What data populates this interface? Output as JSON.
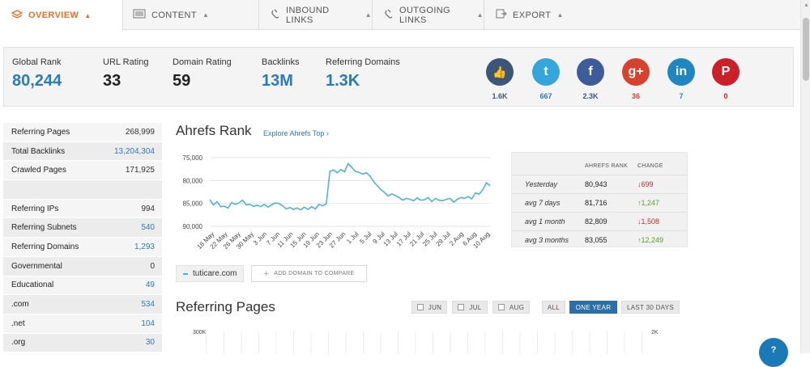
{
  "tabs": [
    {
      "label": "OVERVIEW",
      "icon": "layers-icon"
    },
    {
      "label": "CONTENT",
      "icon": "document-icon"
    },
    {
      "label": "INBOUND LINKS",
      "icon": "link-in-icon"
    },
    {
      "label": "OUTGOING LINKS",
      "icon": "link-out-icon"
    },
    {
      "label": "EXPORT",
      "icon": "export-icon"
    }
  ],
  "metrics": [
    {
      "label": "Global Rank",
      "value": "80,244"
    },
    {
      "label": "URL Rating",
      "value": "33"
    },
    {
      "label": "Domain Rating",
      "value": "59"
    },
    {
      "label": "Backlinks",
      "value": "13M"
    },
    {
      "label": "Referring Domains",
      "value": "1.3K"
    }
  ],
  "social": [
    {
      "network": "like",
      "icon": "thumbs-up-icon",
      "glyph": "👍",
      "count": "1.6K",
      "color": "#3b5676",
      "count_color": "#3b5676"
    },
    {
      "network": "twitter",
      "icon": "twitter-icon",
      "glyph": "t",
      "count": "667",
      "color": "#35a6dc",
      "count_color": "#2b7bb9"
    },
    {
      "network": "facebook",
      "icon": "facebook-icon",
      "glyph": "f",
      "count": "2.3K",
      "color": "#3f5c9a",
      "count_color": "#3b5676"
    },
    {
      "network": "google-plus",
      "icon": "google-plus-icon",
      "glyph": "g+",
      "count": "36",
      "color": "#d9412f",
      "count_color": "#d9412f"
    },
    {
      "network": "linkedin",
      "icon": "linkedin-icon",
      "glyph": "in",
      "count": "7",
      "color": "#1f86c0",
      "count_color": "#1f86c0"
    },
    {
      "network": "pinterest",
      "icon": "pinterest-icon",
      "glyph": "P",
      "count": "0",
      "color": "#cb2027",
      "count_color": "#cb2027"
    }
  ],
  "stats": [
    {
      "label": "Referring Pages",
      "value": "268,999",
      "link": false
    },
    {
      "label": "Total Backlinks",
      "value": "13,204,304",
      "link": true
    },
    {
      "label": "Crawled Pages",
      "value": "171,925",
      "link": false
    },
    {
      "label": "",
      "value": "",
      "link": false
    },
    {
      "label": "Referring IPs",
      "value": "994",
      "link": false
    },
    {
      "label": "Referring Subnets",
      "value": "540",
      "link": true
    },
    {
      "label": "Referring Domains",
      "value": "1,293",
      "link": true
    },
    {
      "label": "Governmental",
      "value": "0",
      "link": false
    },
    {
      "label": "Educational",
      "value": "49",
      "link": true
    },
    {
      "label": ".com",
      "value": "534",
      "link": true
    },
    {
      "label": ".net",
      "value": "104",
      "link": true
    },
    {
      "label": ".org",
      "value": "30",
      "link": true
    }
  ],
  "rank": {
    "title": "Ahrefs Rank",
    "explore": "Explore Ahrefs Top ›",
    "table_headers": [
      "AHREFS RANK",
      "CHANGE"
    ],
    "rows": [
      {
        "label": "Yesterday",
        "rank": "80,943",
        "change": "699",
        "dir": "down"
      },
      {
        "label": "avg 7 days",
        "rank": "81,716",
        "change": "1,247",
        "dir": "up"
      },
      {
        "label": "avg 1 month",
        "rank": "82,809",
        "change": "1,508",
        "dir": "down"
      },
      {
        "label": "avg 3 months",
        "rank": "83,055",
        "change": "12,249",
        "dir": "up"
      }
    ]
  },
  "chart_data": {
    "type": "line",
    "title": "Ahrefs Rank",
    "y_ticks": [
      "75,000",
      "80,000",
      "85,000",
      "90,000"
    ],
    "ylim": [
      75000,
      90000
    ],
    "y_inverted": true,
    "x_ticks": [
      "18 May",
      "22 May",
      "26 May",
      "30 May",
      "3 Jun",
      "7 Jun",
      "11 Jun",
      "15 Jun",
      "19 Jun",
      "23 Jun",
      "27 Jun",
      "1 Jul",
      "5 Jul",
      "9 Jul",
      "13 Jul",
      "17 Jul",
      "21 Jul",
      "25 Jul",
      "29 Jul",
      "2 Aug",
      "6 Aug",
      "10 Aug"
    ],
    "series": [
      {
        "values": [
          84200,
          85300,
          84600,
          85700,
          85600,
          86000,
          84800,
          85200,
          84900,
          84300,
          85300,
          85200,
          85600,
          85400,
          85700,
          85200,
          85800,
          85300,
          84900,
          85000,
          85500,
          86200,
          85900,
          86300,
          86000,
          86400,
          85800,
          86300,
          85700,
          86200,
          85200,
          85500,
          85100,
          78000,
          77700,
          78300,
          77600,
          78100,
          76300,
          77100,
          78000,
          78200,
          78600,
          78300,
          79000,
          80200,
          81100,
          82000,
          82600,
          83400,
          82900,
          83300,
          83700,
          84300,
          83900,
          84100,
          84400,
          83800,
          84300,
          84200,
          83700,
          84600,
          83900,
          84300,
          84400,
          84100,
          83900,
          84700,
          84100,
          83700,
          83900,
          83500,
          84000,
          82700,
          83000,
          82000,
          80500,
          81100
        ]
      }
    ],
    "color": "#4fb3e0"
  },
  "domain": {
    "name": "tuticare.com",
    "compare_label": "ADD DOMAIN TO COMPARE"
  },
  "referring_pages": {
    "title": "Referring Pages",
    "filters": [
      {
        "label": "JUN",
        "checkbox": true
      },
      {
        "label": "JUL",
        "checkbox": true
      },
      {
        "label": "AUG",
        "checkbox": true
      },
      {
        "label": "ALL",
        "checkbox": false
      },
      {
        "label": "ONE YEAR",
        "checkbox": false,
        "active": true
      },
      {
        "label": "LAST 30 DAYS",
        "checkbox": false
      }
    ],
    "y_left": "300K",
    "y_right": "2K"
  },
  "help": {
    "label": "?"
  }
}
